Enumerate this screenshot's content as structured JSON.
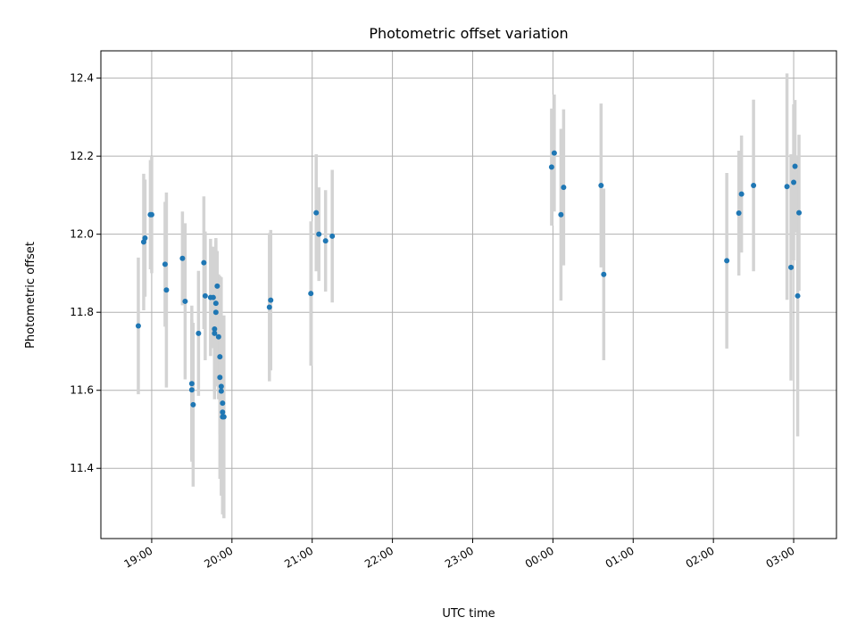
{
  "chart_data": {
    "type": "scatter",
    "title": "Photometric offset variation",
    "xlabel": "UTC time",
    "ylabel": "Photometric offset",
    "grid": true,
    "ylim": [
      11.22,
      12.47
    ],
    "xlim": [
      "18:22",
      "03:32"
    ],
    "x_ticks": [
      "19:00",
      "20:00",
      "21:00",
      "22:00",
      "23:00",
      "00:00",
      "01:00",
      "02:00",
      "03:00"
    ],
    "y_ticks": [
      "11.4",
      "11.6",
      "11.8",
      "12.0",
      "12.2",
      "12.4"
    ],
    "marker_color": "#1f77b4",
    "errorbar_color": "#d3d3d3",
    "series": [
      {
        "x": [
          "18:50",
          "18:54",
          "18:55",
          "18:59",
          "19:00",
          "19:10",
          "19:11",
          "19:23",
          "19:25",
          "19:30",
          "19:30",
          "19:31",
          "19:35",
          "19:39",
          "19:40",
          "19:44",
          "19:46",
          "19:47",
          "19:47",
          "19:48",
          "19:48",
          "19:49",
          "19:50",
          "19:51",
          "19:51",
          "19:52",
          "19:52",
          "19:53",
          "19:53",
          "19:53",
          "19:54",
          "20:28",
          "20:29",
          "20:59",
          "21:03",
          "21:05",
          "21:10",
          "21:15",
          "23:59",
          "00:01",
          "00:06",
          "00:08",
          "00:36",
          "00:38",
          "02:10",
          "02:19",
          "02:21",
          "02:30",
          "02:55",
          "02:58",
          "03:00",
          "03:01",
          "03:03",
          "03:04"
        ],
        "y": [
          11.765,
          11.98,
          11.99,
          12.05,
          12.05,
          11.923,
          11.857,
          11.938,
          11.828,
          11.617,
          11.601,
          11.563,
          11.746,
          11.927,
          11.842,
          11.838,
          11.838,
          11.757,
          11.746,
          11.8,
          11.823,
          11.867,
          11.737,
          11.686,
          11.633,
          11.61,
          11.598,
          11.567,
          11.544,
          11.532,
          11.532,
          11.813,
          11.831,
          11.848,
          12.055,
          12.0,
          11.983,
          11.995,
          12.172,
          12.208,
          12.05,
          12.12,
          12.125,
          11.897,
          11.932,
          12.054,
          12.103,
          12.125,
          12.122,
          11.915,
          12.133,
          12.174,
          11.842,
          12.055
        ],
        "err": [
          0.175,
          0.175,
          0.15,
          0.14,
          0.15,
          0.16,
          0.25,
          0.12,
          0.2,
          0.2,
          0.18,
          0.21,
          0.16,
          0.17,
          0.165,
          0.15,
          0.13,
          0.18,
          0.15,
          0.19,
          0.16,
          0.09,
          0.16,
          0.2,
          0.26,
          0.28,
          0.19,
          0.2,
          0.17,
          0.25,
          0.26,
          0.19,
          0.18,
          0.185,
          0.15,
          0.12,
          0.13,
          0.17,
          0.15,
          0.15,
          0.22,
          0.2,
          0.21,
          0.22,
          0.225,
          0.16,
          0.15,
          0.22,
          0.29,
          0.29,
          0.2,
          0.17,
          0.36,
          0.2
        ]
      }
    ]
  }
}
